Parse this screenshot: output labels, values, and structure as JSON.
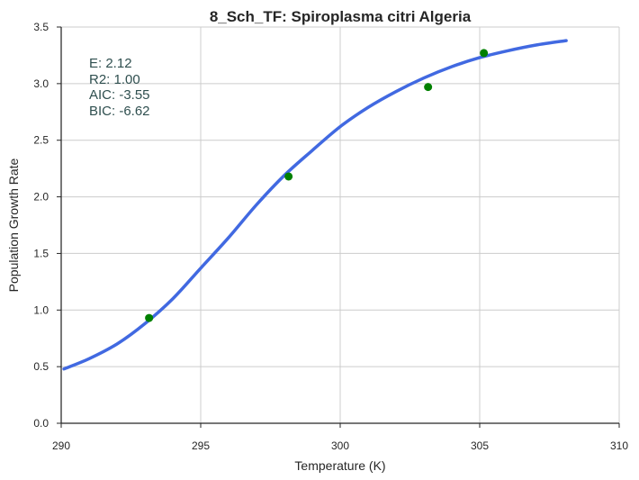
{
  "chart_data": {
    "type": "line",
    "title": "8_Sch_TF: Spiroplasma citri Algeria",
    "xlabel": "Temperature (K)",
    "ylabel": "Population Growth Rate",
    "xlim": [
      290,
      310
    ],
    "ylim": [
      0.0,
      3.5
    ],
    "x_ticks": [
      "290",
      "295",
      "300",
      "305",
      "310"
    ],
    "y_ticks": [
      "0.0",
      "0.5",
      "1.0",
      "1.5",
      "2.0",
      "2.5",
      "3.0",
      "3.5"
    ],
    "x_tick_values": [
      290,
      295,
      300,
      305,
      310
    ],
    "y_tick_values": [
      0.0,
      0.5,
      1.0,
      1.5,
      2.0,
      2.5,
      3.0,
      3.5
    ],
    "grid": true,
    "series": [
      {
        "kind": "line",
        "color": "#4169e1",
        "x": [
          290.1,
          291,
          292,
          293,
          294,
          295,
          296,
          297,
          298,
          299,
          300,
          301,
          302,
          303,
          304,
          305,
          306,
          307,
          308.1
        ],
        "y": [
          0.48,
          0.57,
          0.7,
          0.88,
          1.1,
          1.37,
          1.64,
          1.93,
          2.19,
          2.41,
          2.62,
          2.79,
          2.93,
          3.05,
          3.15,
          3.23,
          3.29,
          3.34,
          3.38
        ]
      },
      {
        "kind": "scatter",
        "color": "#008000",
        "x": [
          293.15,
          298.15,
          303.15,
          305.15
        ],
        "y": [
          0.93,
          2.18,
          2.97,
          3.27
        ]
      }
    ],
    "annotations": [
      "E:  2.12",
      "R2:  1.00",
      "AIC: -3.55",
      "BIC: -6.62"
    ]
  }
}
